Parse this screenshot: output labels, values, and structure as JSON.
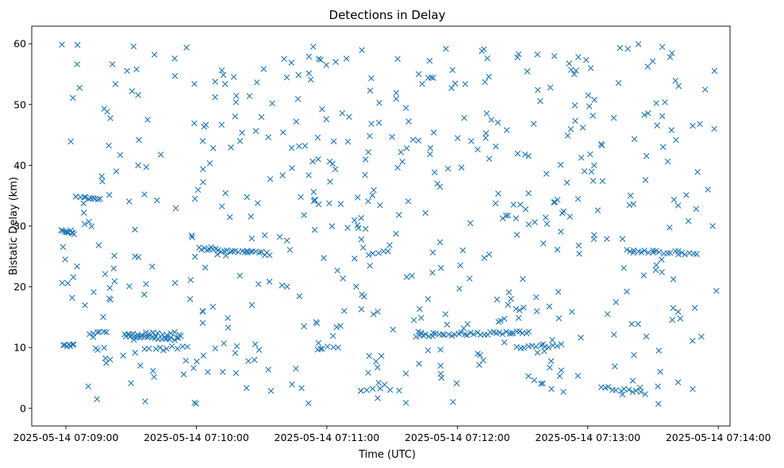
{
  "chart_data": {
    "type": "scatter",
    "title": "Detections in Delay",
    "xlabel": "Time (UTC)",
    "ylabel": "Bistatic Delay (km)",
    "x_unit": "seconds after 2025-05-14 07:09:00 UTC",
    "xlim": [
      -15.7,
      305.4
    ],
    "ylim": [
      -2.9,
      62.9
    ],
    "marker": "x",
    "color": "#1f77b4",
    "grid": false,
    "legend": "none",
    "x_ticks": [
      {
        "value": 0,
        "label": "2025-05-14 07:09:00"
      },
      {
        "value": 60,
        "label": "2025-05-14 07:10:00"
      },
      {
        "value": 120,
        "label": "2025-05-14 07:11:00"
      },
      {
        "value": 180,
        "label": "2025-05-14 07:12:00"
      },
      {
        "value": 240,
        "label": "2025-05-14 07:13:00"
      },
      {
        "value": 300,
        "label": "2025-05-14 07:14:00"
      }
    ],
    "y_ticks": [
      {
        "value": 0,
        "label": "0"
      },
      {
        "value": 10,
        "label": "10"
      },
      {
        "value": 20,
        "label": "20"
      },
      {
        "value": 30,
        "label": "30"
      },
      {
        "value": 40,
        "label": "40"
      },
      {
        "value": 50,
        "label": "50"
      },
      {
        "value": 60,
        "label": "60"
      }
    ],
    "tracks": [
      {
        "x_start": -2,
        "x_end": 4,
        "y_start": 29.5,
        "y_end": 28.8,
        "count": 10
      },
      {
        "x_start": 7,
        "x_end": 16,
        "y_start": 34.6,
        "y_end": 34.6,
        "count": 9
      },
      {
        "x_start": -1,
        "x_end": 4,
        "y_start": 10.4,
        "y_end": 10.4,
        "count": 7
      },
      {
        "x_start": 11,
        "x_end": 19,
        "y_start": 12.4,
        "y_end": 12.4,
        "count": 6
      },
      {
        "x_start": 28,
        "x_end": 52,
        "y_start": 11.9,
        "y_end": 11.4,
        "count": 22
      },
      {
        "x_start": 27,
        "x_end": 52,
        "y_start": 12.3,
        "y_end": 12.3,
        "count": 14
      },
      {
        "x_start": 36,
        "x_end": 56,
        "y_start": 10.0,
        "y_end": 10.0,
        "count": 9
      },
      {
        "x_start": 61,
        "x_end": 94,
        "y_start": 26.3,
        "y_end": 25.4,
        "count": 26
      },
      {
        "x_start": 161,
        "x_end": 213,
        "y_start": 12.0,
        "y_end": 12.6,
        "count": 36
      },
      {
        "x_start": 207,
        "x_end": 228,
        "y_start": 10.0,
        "y_end": 10.3,
        "count": 12
      },
      {
        "x_start": 246,
        "x_end": 266,
        "y_start": 3.5,
        "y_end": 2.5,
        "count": 12
      },
      {
        "x_start": 258,
        "x_end": 290,
        "y_start": 25.9,
        "y_end": 25.5,
        "count": 20
      },
      {
        "x_start": 139,
        "x_end": 148,
        "y_start": 25.4,
        "y_end": 25.8,
        "count": 5
      },
      {
        "x_start": 116,
        "x_end": 125,
        "y_start": 9.9,
        "y_end": 10.2,
        "count": 5
      }
    ],
    "clutter_points": 560
  }
}
